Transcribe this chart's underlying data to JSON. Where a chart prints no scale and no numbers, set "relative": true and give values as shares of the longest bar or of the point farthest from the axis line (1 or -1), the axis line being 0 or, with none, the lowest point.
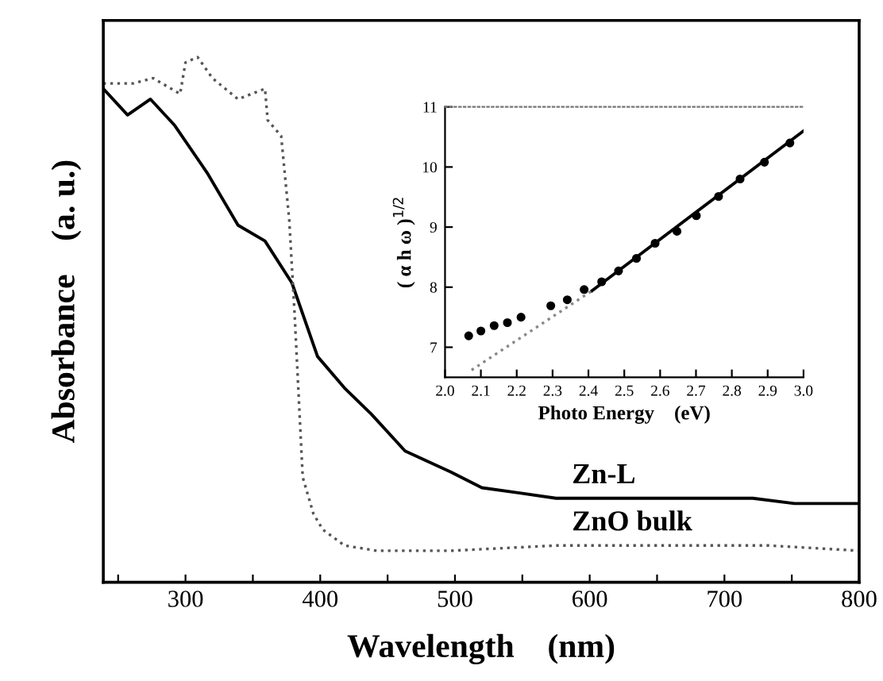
{
  "chart_data": [
    {
      "type": "line",
      "xlabel": "Wavelength    (nm)",
      "ylabel": "Absorbance    (a. u.)",
      "relative": true,
      "xlim": [
        239,
        800
      ],
      "xticks": [
        {
          "value": 250,
          "label": null
        },
        300,
        {
          "value": 350,
          "label": null
        },
        400,
        {
          "value": 450,
          "label": null
        },
        500,
        {
          "value": 550,
          "label": null
        },
        600,
        {
          "value": 650,
          "label": null
        },
        700,
        {
          "value": 750,
          "label": null
        },
        800
      ],
      "tick_labels": "x",
      "grid": false,
      "legend": false,
      "series": [
        {
          "name": "Zn-L",
          "color": "#000000",
          "line_style": "solid",
          "x": [
            239,
            257,
            274,
            292,
            316,
            339,
            359,
            379,
            398,
            418,
            438,
            463,
            497,
            520,
            548,
            575,
            615,
            654,
            693,
            721,
            752,
            800
          ],
          "values": [
            0.94,
            0.89,
            0.92,
            0.87,
            0.78,
            0.68,
            0.65,
            0.57,
            0.43,
            0.37,
            0.32,
            0.25,
            0.21,
            0.18,
            0.17,
            0.16,
            0.16,
            0.16,
            0.16,
            0.16,
            0.15,
            0.15
          ]
        },
        {
          "name": "ZnO bulk",
          "color": "#555555",
          "line_style": "dotted",
          "x": [
            239,
            261,
            276,
            296,
            300,
            309,
            320,
            339,
            359,
            361,
            371,
            377,
            381,
            387,
            395,
            402,
            418,
            442,
            497,
            575,
            654,
            733,
            800
          ],
          "values": [
            0.95,
            0.95,
            0.96,
            0.93,
            0.99,
            1.0,
            0.96,
            0.92,
            0.94,
            0.88,
            0.85,
            0.69,
            0.51,
            0.2,
            0.13,
            0.1,
            0.07,
            0.06,
            0.06,
            0.07,
            0.07,
            0.07,
            0.06
          ]
        }
      ]
    },
    {
      "type": "scatter",
      "xlabel": "Photo Energy    (eV)",
      "ylabel": "( α h ω )$^{1/2}$",
      "xlim": [
        2.0,
        3.0
      ],
      "ylim": [
        6.5,
        11
      ],
      "xticks": [
        {
          "value": 2.0,
          "label": "2.0"
        },
        2.1,
        2.2,
        2.3,
        2.4,
        2.5,
        2.6,
        2.7,
        2.8,
        2.9,
        {
          "value": 3.0,
          "label": "3.0"
        }
      ],
      "yticks": [
        7,
        8,
        9,
        10,
        11
      ],
      "grid": false,
      "legend": false,
      "marker": "circle",
      "series": [
        {
          "color": "#000000",
          "x": [
            2.066,
            2.1,
            2.137,
            2.174,
            2.212,
            2.295,
            2.341,
            2.388,
            2.437,
            2.484,
            2.534,
            2.586,
            2.647,
            2.701,
            2.763,
            2.823,
            2.891,
            2.962
          ],
          "values": [
            7.19,
            7.27,
            7.36,
            7.41,
            7.5,
            7.69,
            7.79,
            7.96,
            8.09,
            8.27,
            8.48,
            8.73,
            8.93,
            9.19,
            9.51,
            9.8,
            10.08,
            10.4
          ]
        },
        {
          "type": "line",
          "color": "#000000",
          "line_style": "solid",
          "marker": "none",
          "x": [
            2.41,
            3.0
          ],
          "values": [
            7.94,
            10.6
          ]
        },
        {
          "type": "line",
          "color": "#888888",
          "line_style": "dotted",
          "marker": "none",
          "x": [
            2.074,
            2.41
          ],
          "values": [
            6.62,
            7.94
          ]
        }
      ]
    }
  ]
}
